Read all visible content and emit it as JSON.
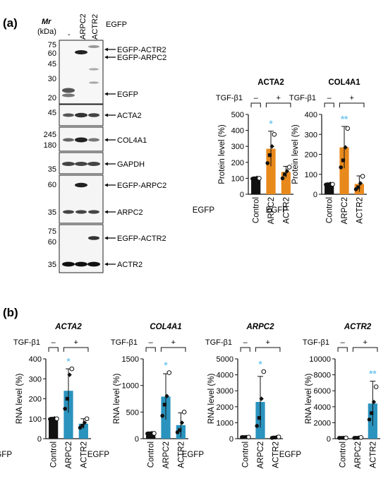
{
  "panel_a": {
    "label": "(a)",
    "mr_label": "Mr",
    "kda_label": "(kDa)",
    "lane_labels": [
      "-",
      "ARPC2",
      "ACTR2"
    ],
    "lane_group_label": "EGFP",
    "blots": [
      {
        "markers": [
          "75",
          "60",
          "45",
          "30",
          "20"
        ],
        "bands": [
          "EGFP-ACTR2",
          "EGFP-ARPC2",
          "EGFP"
        ]
      },
      {
        "markers": [
          "45"
        ],
        "bands": [
          "ACTA2"
        ]
      },
      {
        "markers": [
          "245",
          "180"
        ],
        "bands": [
          "COL4A1"
        ]
      },
      {
        "markers": [
          "35"
        ],
        "bands": [
          "GAPDH"
        ]
      },
      {
        "markers": [
          "60",
          "35"
        ],
        "bands": [
          "EGFP-ARPC2",
          "ARPC2"
        ]
      },
      {
        "markers": [
          "75",
          "60",
          "35"
        ],
        "bands": [
          "EGFP-ACTR2",
          "ACTR2"
        ]
      }
    ]
  },
  "panel_b": {
    "label": "(b)"
  },
  "treatment_label": "TGF-β1",
  "treatment_minus": "–",
  "treatment_plus": "+",
  "egfp_label": "EGFP",
  "significance_marker": "*",
  "colors": {
    "protein_bar": "#E8891C",
    "rna_bar": "#2A93BE",
    "control_bar": "#111111",
    "significance": "#6EC6F0"
  },
  "chart_data": [
    {
      "type": "bar",
      "title": "ACTA2",
      "italic": false,
      "categories": [
        "Control",
        "ARPC2",
        "ACTR2"
      ],
      "values": [
        100,
        285,
        140
      ],
      "errors": [
        3,
        110,
        35
      ],
      "points": [
        [
          97,
          100,
          103,
          100
        ],
        [
          195,
          245,
          300,
          375
        ],
        [
          100,
          125,
          145,
          170
        ]
      ],
      "ylabel": "Protein level (%)",
      "yticks": [
        "0",
        "100",
        "200",
        "300",
        "400",
        "500"
      ],
      "ylim": [
        0,
        500
      ],
      "significance": [
        "",
        "*",
        ""
      ]
    },
    {
      "type": "bar",
      "title": "COL4A1",
      "italic": false,
      "categories": [
        "Control",
        "ARPC2",
        "ACTR2"
      ],
      "values": [
        50,
        235,
        52
      ],
      "errors": [
        3,
        105,
        40
      ],
      "points": [
        [
          48,
          50,
          52,
          50
        ],
        [
          135,
          170,
          235,
          330
        ],
        [
          25,
          35,
          55,
          90
        ]
      ],
      "ylabel": "Protein level (%)",
      "yticks": [
        "0",
        "100",
        "200",
        "300",
        "400"
      ],
      "ylim": [
        0,
        400
      ],
      "significance": [
        "",
        "**",
        ""
      ]
    },
    {
      "type": "bar",
      "title": "ACTA2",
      "italic": true,
      "categories": [
        "Control",
        "ARPC2",
        "ACTR2"
      ],
      "values": [
        100,
        240,
        75
      ],
      "errors": [
        3,
        110,
        25
      ],
      "points": [
        [
          98,
          100,
          102,
          100
        ],
        [
          150,
          200,
          320,
          350
        ],
        [
          55,
          65,
          80,
          100
        ]
      ],
      "ylabel": "RNA level (%)",
      "yticks": [
        "0",
        "100",
        "200",
        "300",
        "400"
      ],
      "ylim": [
        0,
        400
      ],
      "significance": [
        "",
        "*",
        ""
      ]
    },
    {
      "type": "bar",
      "title": "COL4A1",
      "italic": true,
      "categories": [
        "Control",
        "ARPC2",
        "ACTR2"
      ],
      "values": [
        100,
        790,
        255
      ],
      "errors": [
        10,
        430,
        230
      ],
      "points": [
        [
          95,
          100,
          105,
          100
        ],
        [
          430,
          640,
          800,
          1240
        ],
        [
          120,
          160,
          300,
          500
        ]
      ],
      "ylabel": "RNA level (%)",
      "yticks": [
        "0",
        "500",
        "1000",
        "1500"
      ],
      "ylim": [
        0,
        1500
      ],
      "significance": [
        "",
        "*",
        ""
      ]
    },
    {
      "type": "bar",
      "title": "ARPC2",
      "italic": true,
      "categories": [
        "Control",
        "ARPC2",
        "ACTR2"
      ],
      "values": [
        100,
        2300,
        80
      ],
      "errors": [
        10,
        1600,
        40
      ],
      "points": [
        [
          95,
          100,
          105,
          100
        ],
        [
          800,
          1300,
          2500,
          4200
        ],
        [
          50,
          70,
          90,
          110
        ]
      ],
      "ylabel": "RNA level (%)",
      "yticks": [
        "0",
        "1000",
        "2000",
        "3000",
        "4000",
        "5000"
      ],
      "ylim": [
        0,
        5000
      ],
      "significance": [
        "",
        "*",
        ""
      ]
    },
    {
      "type": "bar",
      "title": "ACTR2",
      "italic": true,
      "categories": [
        "Control",
        "ARPC2",
        "ACTR2"
      ],
      "values": [
        100,
        120,
        4400
      ],
      "errors": [
        5,
        30,
        2800
      ],
      "points": [
        [
          98,
          100,
          102,
          100
        ],
        [
          90,
          110,
          130,
          150
        ],
        [
          2400,
          3200,
          4600,
          6500
        ]
      ],
      "ylabel": "RNA level (%)",
      "yticks": [
        "0",
        "2000",
        "4000",
        "6000",
        "8000",
        "10000"
      ],
      "ylim": [
        0,
        10000
      ],
      "significance": [
        "",
        "",
        "**"
      ]
    }
  ]
}
